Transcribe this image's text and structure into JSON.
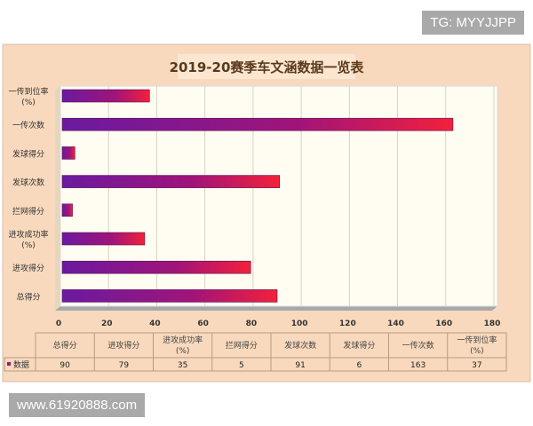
{
  "chart_data": {
    "type": "bar",
    "orientation": "horizontal",
    "title": "2019-20赛季车文涵数据一览表",
    "categories": [
      "总得分",
      "进攻得分",
      "进攻成功率\n(%)",
      "拦网得分",
      "发球次数",
      "发球得分",
      "一传次数",
      "一传到位率\n(%)"
    ],
    "series": [
      {
        "name": "数据",
        "values": [
          90,
          79,
          35,
          5,
          91,
          6,
          163,
          37
        ]
      }
    ],
    "xlim": [
      0,
      180
    ],
    "xticks": [
      "0",
      "20",
      "40",
      "60",
      "80",
      "100",
      "120",
      "140",
      "160",
      "180"
    ],
    "grid": true,
    "legend": "bottom-left, inside data table",
    "data_table": true,
    "colors": {
      "bar_start": "#7a1a9e",
      "bar_end": "#f0203a",
      "background": "#f8d9bd",
      "plot": "#fffdf2"
    }
  },
  "watermarks": {
    "top": "TG: MYYJJPP",
    "bottom": "www.61920888.com"
  }
}
